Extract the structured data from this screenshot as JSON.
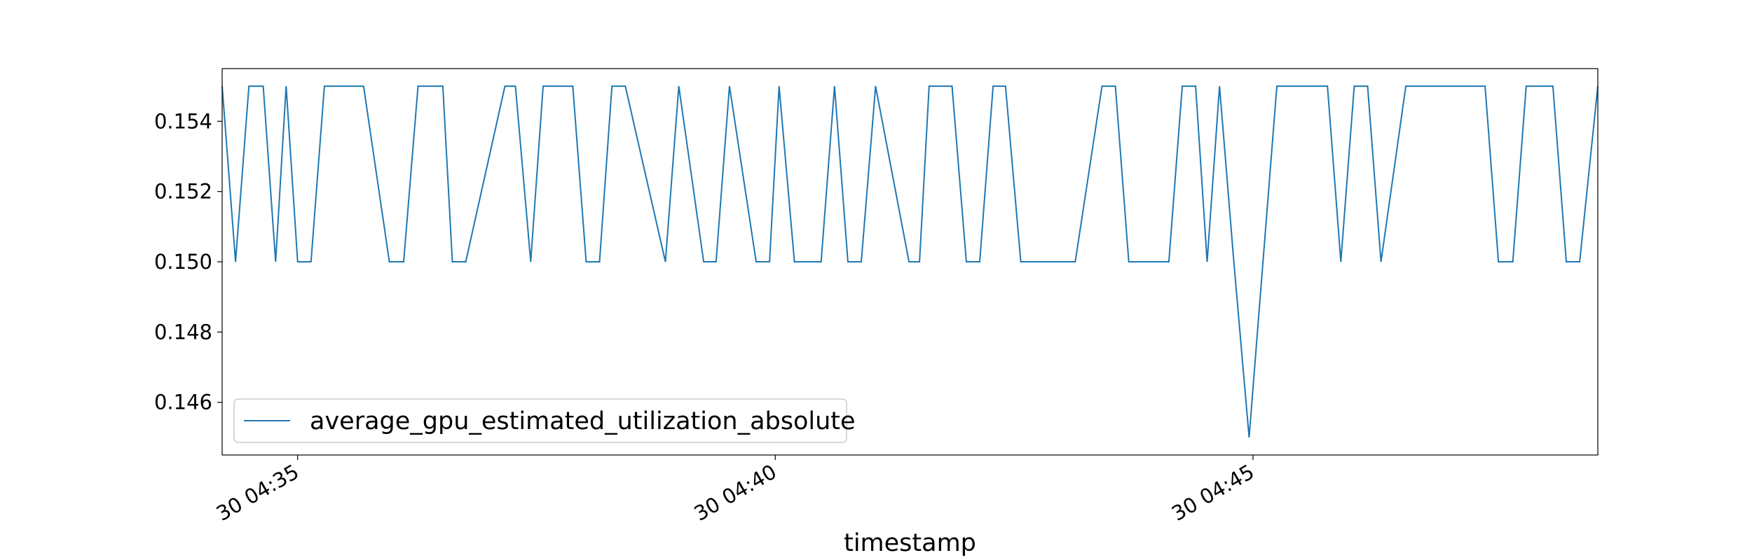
{
  "chart_data": {
    "type": "line",
    "title": "",
    "xlabel": "timestamp",
    "ylabel": "",
    "x_tick_labels": [
      "30 04:35",
      "30 04:40",
      "30 04:45"
    ],
    "x_tick_minutes": [
      0,
      5,
      10
    ],
    "xlim_minutes": [
      -0.79,
      13.61
    ],
    "y_ticks": [
      0.146,
      0.148,
      0.15,
      0.152,
      0.154
    ],
    "y_tick_labels": [
      "0.146",
      "0.148",
      "0.150",
      "0.152",
      "0.154"
    ],
    "ylim": [
      0.1445,
      0.1555
    ],
    "grid": false,
    "legend": "lower-left",
    "series": [
      {
        "name": "average_gpu_estimated_utilization_absolute",
        "color": "#1f77b4",
        "x_minutes": [
          -0.79,
          -0.65,
          -0.51,
          -0.36,
          -0.23,
          -0.12,
          0.0,
          0.14,
          0.28,
          0.69,
          0.96,
          1.11,
          1.26,
          1.52,
          1.62,
          1.76,
          2.17,
          2.28,
          2.44,
          2.57,
          2.88,
          3.02,
          3.16,
          3.29,
          3.43,
          3.85,
          3.99,
          4.25,
          4.38,
          4.52,
          4.8,
          4.94,
          5.04,
          5.2,
          5.48,
          5.62,
          5.76,
          5.9,
          6.05,
          6.4,
          6.51,
          6.61,
          6.85,
          7.0,
          7.14,
          7.28,
          7.41,
          7.57,
          8.14,
          8.42,
          8.56,
          8.7,
          9.12,
          9.26,
          9.4,
          9.52,
          9.65,
          9.8,
          9.96,
          10.25,
          10.78,
          10.92,
          11.06,
          11.2,
          11.34,
          11.6,
          11.7,
          12.12,
          12.43,
          12.57,
          12.72,
          12.86,
          13.14,
          13.28,
          13.42,
          13.61
        ],
        "values": [
          0.155,
          0.15,
          0.155,
          0.155,
          0.15,
          0.155,
          0.15,
          0.15,
          0.155,
          0.155,
          0.15,
          0.15,
          0.155,
          0.155,
          0.15,
          0.15,
          0.155,
          0.155,
          0.15,
          0.155,
          0.155,
          0.15,
          0.15,
          0.155,
          0.155,
          0.15,
          0.155,
          0.15,
          0.15,
          0.155,
          0.15,
          0.15,
          0.155,
          0.15,
          0.15,
          0.155,
          0.15,
          0.15,
          0.155,
          0.15,
          0.15,
          0.155,
          0.155,
          0.15,
          0.15,
          0.155,
          0.155,
          0.15,
          0.15,
          0.155,
          0.155,
          0.15,
          0.15,
          0.155,
          0.155,
          0.15,
          0.155,
          0.15,
          0.145,
          0.155,
          0.155,
          0.15,
          0.155,
          0.155,
          0.15,
          0.155,
          0.155,
          0.155,
          0.155,
          0.15,
          0.15,
          0.155,
          0.155,
          0.15,
          0.15,
          0.155
        ]
      }
    ]
  }
}
